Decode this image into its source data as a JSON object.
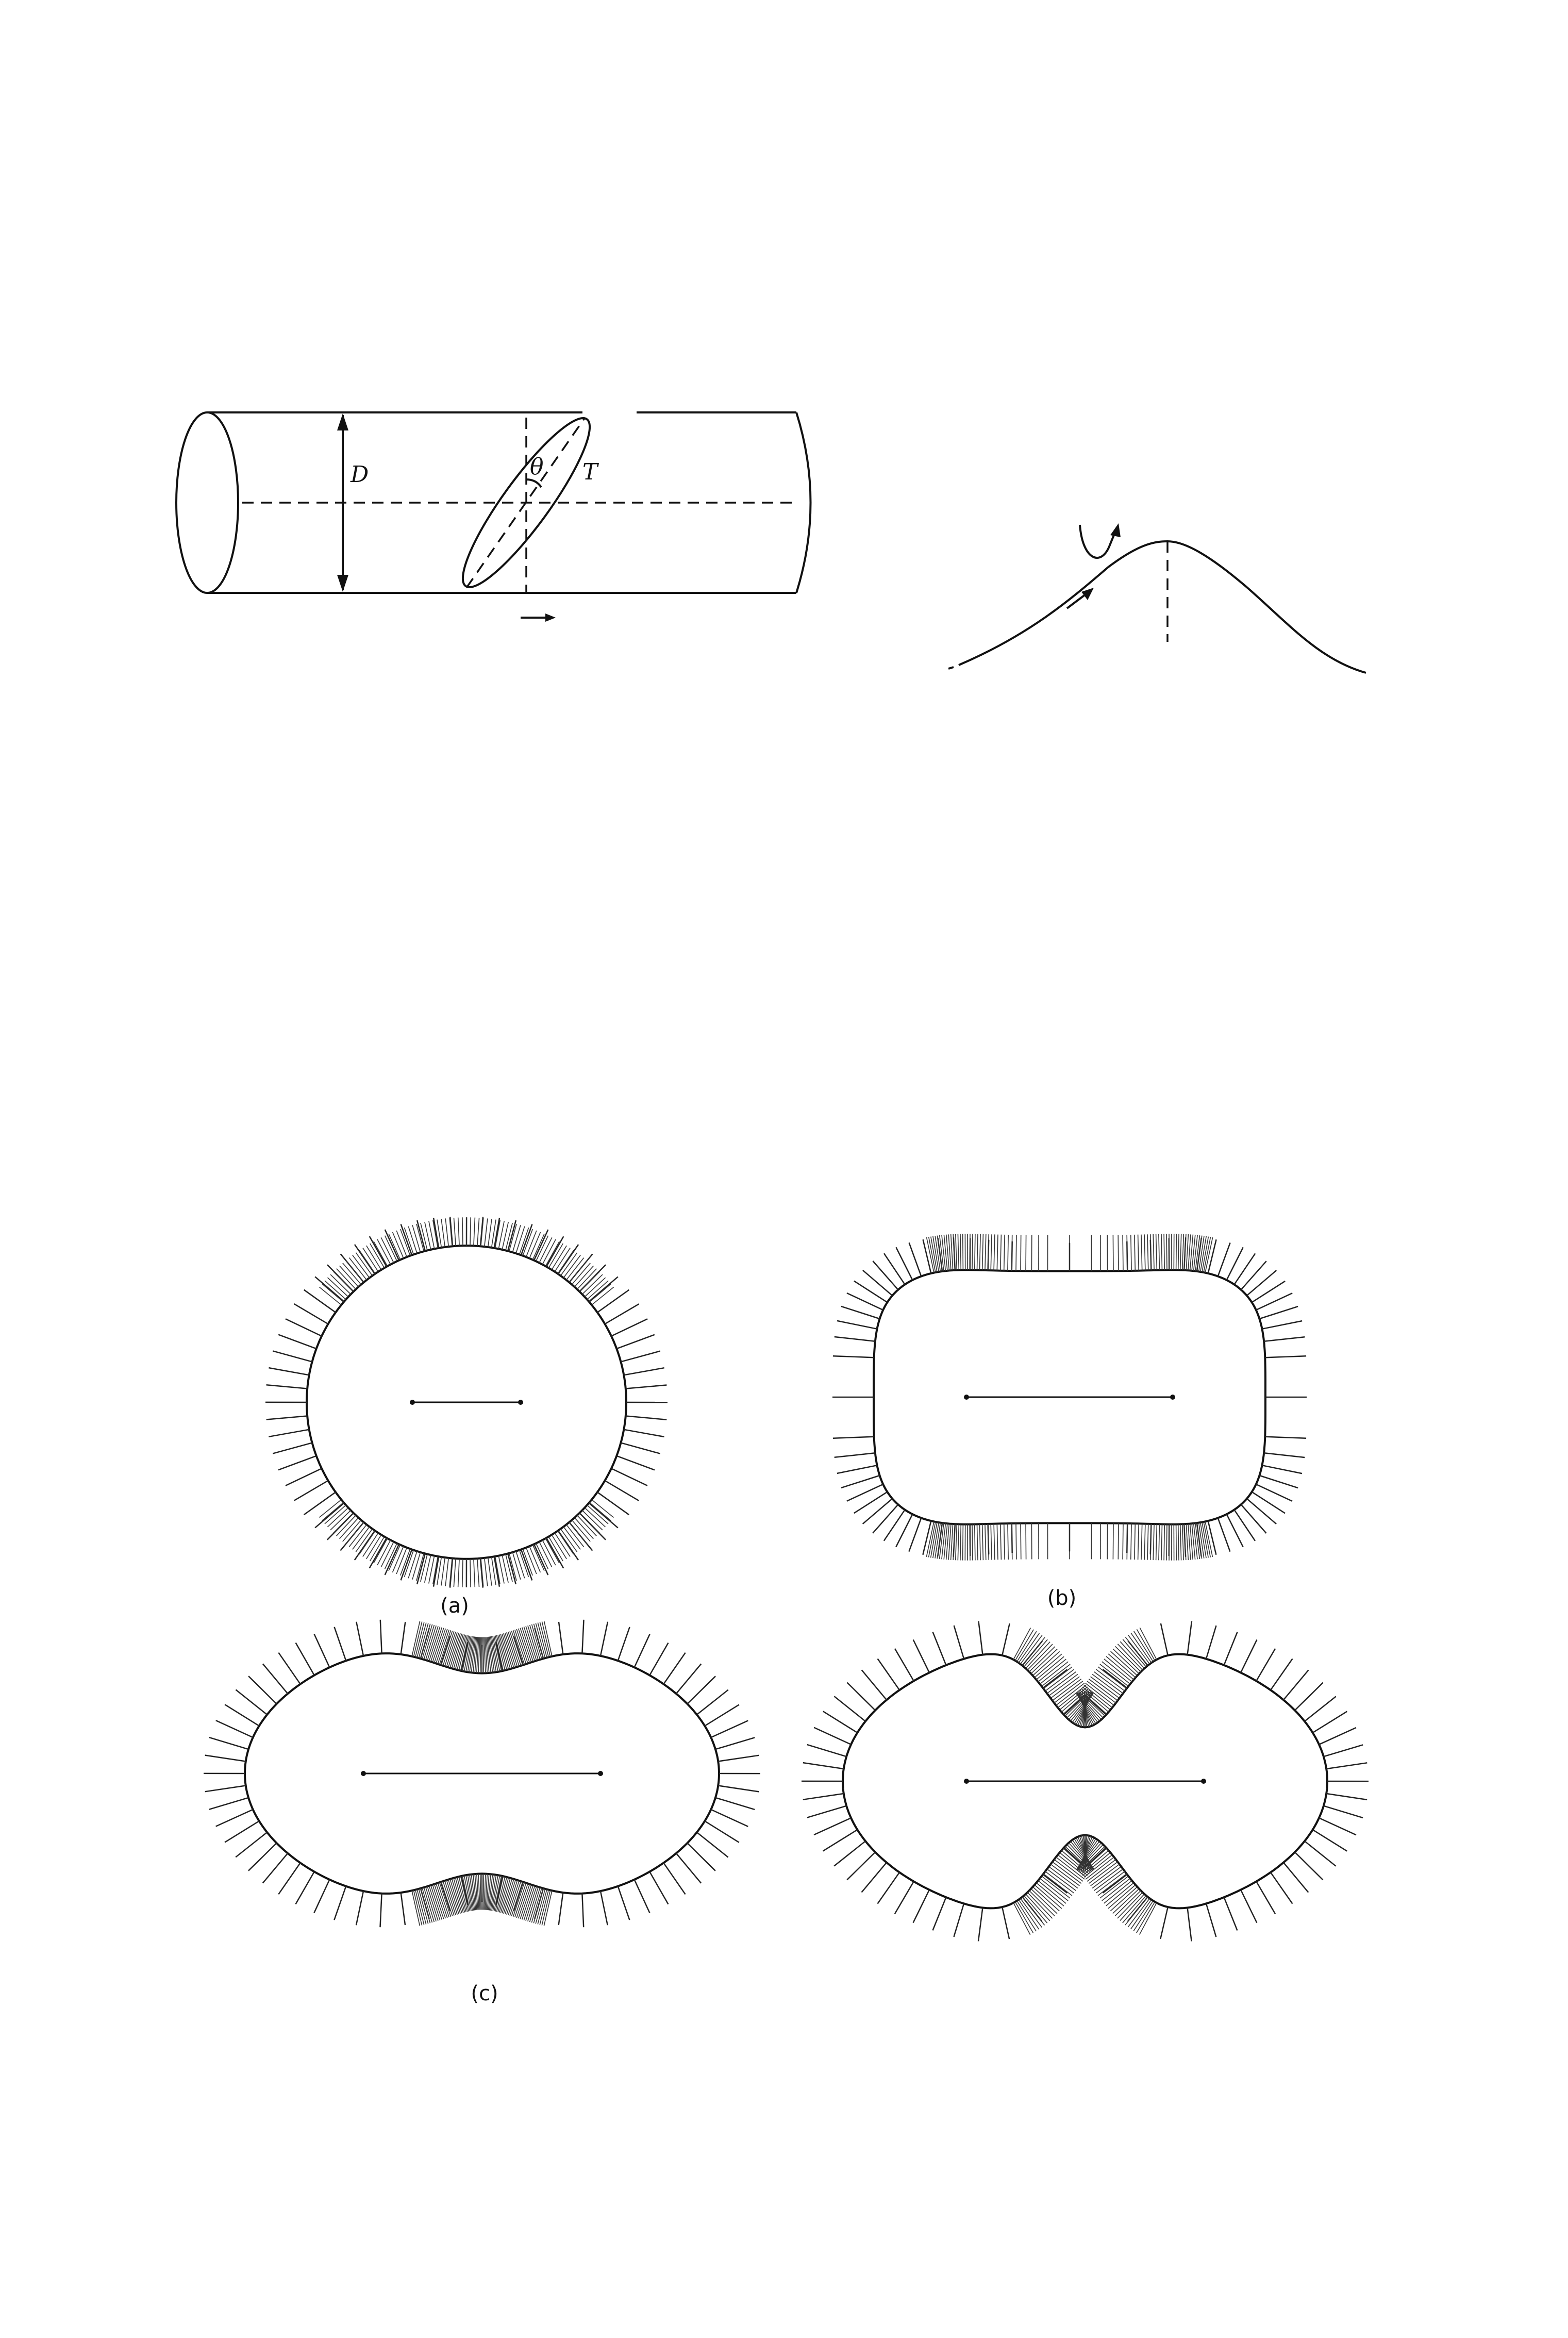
{
  "cylinder": {
    "label_D": "D",
    "label_theta": "θ",
    "label_T": "T"
  },
  "curve": {},
  "panels": [
    {
      "id": "a",
      "caption": "(a)",
      "shape": "oval",
      "ticks_dense_top_bottom": true
    },
    {
      "id": "b",
      "caption": "(b)",
      "shape": "stadium",
      "ticks_dense_top_bottom": true
    },
    {
      "id": "c",
      "caption": "(c)",
      "shape": "peanut",
      "ticks_dense_top_bottom": true
    },
    {
      "id": "d",
      "caption": "",
      "shape": "deep-peanut",
      "ticks_dense_top_bottom": true
    }
  ]
}
